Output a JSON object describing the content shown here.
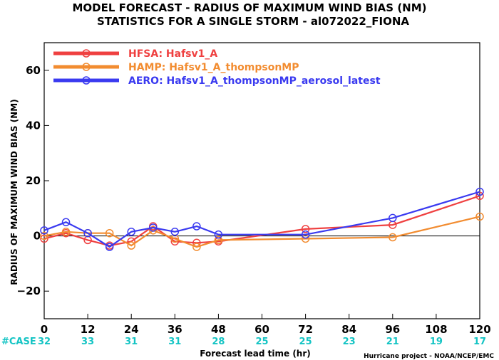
{
  "titles": {
    "line1": "MODEL FORECAST - RADIUS OF MAXIMUM WIND BIAS (NM)",
    "line2": "STATISTICS FOR A SINGLE STORM - al072022_FIONA"
  },
  "credit": "Hurricane project - NOAA/NCEP/EMC",
  "case_label": "#CASE",
  "colors": {
    "HFSA": "#ef4040",
    "HAMP": "#f28c30",
    "AERO": "#3a3af0",
    "case": "#14c4c4"
  },
  "chart_data": {
    "type": "line",
    "xlabel": "Forecast lead time (hr)",
    "ylabel": "RADIUS OF MAXIMUM WIND BIAS (NM)",
    "xlim": [
      0,
      120
    ],
    "ylim": [
      -30,
      70
    ],
    "x_ticks": [
      0,
      12,
      24,
      36,
      48,
      60,
      72,
      84,
      96,
      108,
      120
    ],
    "y_ticks": [
      -20,
      0,
      20,
      40,
      60
    ],
    "zero_line": true,
    "legend_position": "top-left",
    "case_counts": [
      32,
      33,
      31,
      31,
      28,
      25,
      25,
      23,
      21,
      19,
      17
    ],
    "series": [
      {
        "name": "HFSA",
        "legend_label": "HFSA: Hafsv1_A",
        "color_key": "HFSA",
        "x": [
          0,
          6,
          12,
          18,
          24,
          30,
          36,
          42,
          48,
          72,
          96,
          120
        ],
        "values": [
          -1,
          1,
          -1.5,
          -3.5,
          -2,
          3.5,
          -2,
          -2.5,
          -2,
          2.5,
          4,
          14.5
        ]
      },
      {
        "name": "HAMP",
        "legend_label": "HAMP: Hafsv1_A_thompsonMP",
        "color_key": "HAMP",
        "x": [
          0,
          6,
          12,
          18,
          24,
          30,
          36,
          42,
          48,
          72,
          96,
          120
        ],
        "values": [
          0,
          1.5,
          1,
          1,
          -3.5,
          2,
          -1,
          -4,
          -1.5,
          -1,
          -0.5,
          7
        ]
      },
      {
        "name": "AERO",
        "legend_label": "AERO: Hafsv1_A_thompsonMP_aerosol_latest",
        "color_key": "AERO",
        "x": [
          0,
          6,
          12,
          18,
          24,
          30,
          36,
          42,
          48,
          72,
          96,
          120
        ],
        "values": [
          2,
          5,
          1,
          -4,
          1.5,
          3,
          1.5,
          3.5,
          0.5,
          0.5,
          6.5,
          16
        ]
      }
    ]
  }
}
